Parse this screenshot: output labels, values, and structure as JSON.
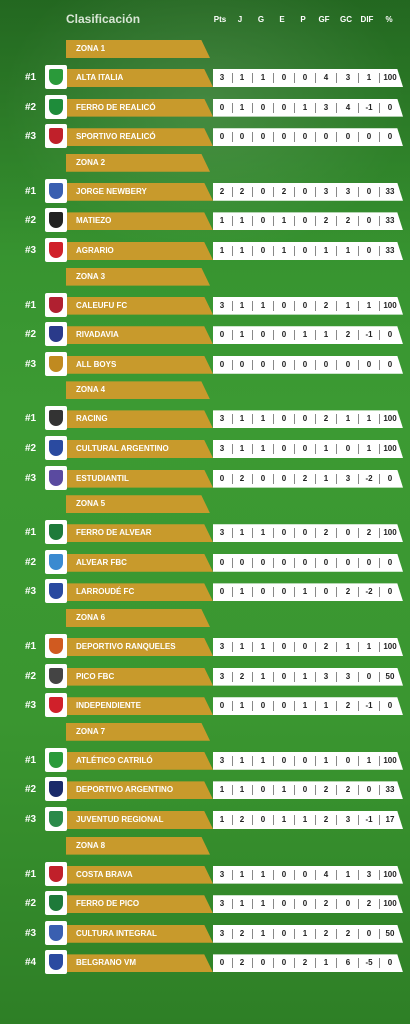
{
  "header": {
    "title": "Clasificación",
    "columns": [
      "Pts",
      "J",
      "G",
      "E",
      "P",
      "GF",
      "GC",
      "DIF",
      "%"
    ]
  },
  "zones": [
    {
      "name": "ZONA 1",
      "teams": [
        {
          "pos": "#1",
          "name": "ALTA ITALIA",
          "color": "#2a9a3a",
          "stats": [
            "3",
            "1",
            "1",
            "0",
            "0",
            "4",
            "3",
            "1",
            "100"
          ]
        },
        {
          "pos": "#2",
          "name": "FERRO DE REALICÓ",
          "color": "#1e8c3a",
          "stats": [
            "0",
            "1",
            "0",
            "0",
            "1",
            "3",
            "4",
            "-1",
            "0"
          ]
        },
        {
          "pos": "#3",
          "name": "SPORTIVO REALICÓ",
          "color": "#c0202a",
          "stats": [
            "0",
            "0",
            "0",
            "0",
            "0",
            "0",
            "0",
            "0",
            "0"
          ]
        }
      ]
    },
    {
      "name": "ZONA 2",
      "teams": [
        {
          "pos": "#1",
          "name": "JORGE NEWBERY",
          "color": "#3a5fb0",
          "stats": [
            "2",
            "2",
            "0",
            "2",
            "0",
            "3",
            "3",
            "0",
            "33"
          ]
        },
        {
          "pos": "#2",
          "name": "MATIEZO",
          "color": "#222222",
          "stats": [
            "1",
            "1",
            "0",
            "1",
            "0",
            "2",
            "2",
            "0",
            "33"
          ]
        },
        {
          "pos": "#3",
          "name": "AGRARIO",
          "color": "#d0202a",
          "stats": [
            "1",
            "1",
            "0",
            "1",
            "0",
            "1",
            "1",
            "0",
            "33"
          ]
        }
      ]
    },
    {
      "name": "ZONA 3",
      "teams": [
        {
          "pos": "#1",
          "name": "CALEUFU FC",
          "color": "#b02030",
          "stats": [
            "3",
            "1",
            "1",
            "0",
            "0",
            "2",
            "1",
            "1",
            "100"
          ]
        },
        {
          "pos": "#2",
          "name": "RIVADAVIA",
          "color": "#2a3a8a",
          "stats": [
            "0",
            "1",
            "0",
            "0",
            "1",
            "1",
            "2",
            "-1",
            "0"
          ]
        },
        {
          "pos": "#3",
          "name": "ALL BOYS",
          "color": "#c08a20",
          "stats": [
            "0",
            "0",
            "0",
            "0",
            "0",
            "0",
            "0",
            "0",
            "0"
          ]
        }
      ]
    },
    {
      "name": "ZONA 4",
      "teams": [
        {
          "pos": "#1",
          "name": "RACING",
          "color": "#333333",
          "stats": [
            "3",
            "1",
            "1",
            "0",
            "0",
            "2",
            "1",
            "1",
            "100"
          ]
        },
        {
          "pos": "#2",
          "name": "CULTURAL ARGENTINO",
          "color": "#2a4aa0",
          "stats": [
            "3",
            "1",
            "1",
            "0",
            "0",
            "1",
            "0",
            "1",
            "100"
          ]
        },
        {
          "pos": "#3",
          "name": "ESTUDIANTIL",
          "color": "#5a4aa0",
          "stats": [
            "0",
            "2",
            "0",
            "0",
            "2",
            "1",
            "3",
            "-2",
            "0"
          ]
        }
      ]
    },
    {
      "name": "ZONA 5",
      "teams": [
        {
          "pos": "#1",
          "name": "FERRO DE ALVEAR",
          "color": "#1e7a3a",
          "stats": [
            "3",
            "1",
            "1",
            "0",
            "0",
            "2",
            "0",
            "2",
            "100"
          ]
        },
        {
          "pos": "#2",
          "name": "ALVEAR FBC",
          "color": "#3a8ad0",
          "stats": [
            "0",
            "0",
            "0",
            "0",
            "0",
            "0",
            "0",
            "0",
            "0"
          ]
        },
        {
          "pos": "#3",
          "name": "LARROUDÉ FC",
          "color": "#2a4aa0",
          "stats": [
            "0",
            "1",
            "0",
            "0",
            "1",
            "0",
            "2",
            "-2",
            "0"
          ]
        }
      ]
    },
    {
      "name": "ZONA 6",
      "teams": [
        {
          "pos": "#1",
          "name": "DEPORTIVO RANQUELES",
          "color": "#d05a20",
          "stats": [
            "3",
            "1",
            "1",
            "0",
            "0",
            "2",
            "1",
            "1",
            "100"
          ]
        },
        {
          "pos": "#2",
          "name": "PICO FBC",
          "color": "#444444",
          "stats": [
            "3",
            "2",
            "1",
            "0",
            "1",
            "3",
            "3",
            "0",
            "50"
          ]
        },
        {
          "pos": "#3",
          "name": "INDEPENDIENTE",
          "color": "#d0202a",
          "stats": [
            "0",
            "1",
            "0",
            "0",
            "1",
            "1",
            "2",
            "-1",
            "0"
          ]
        }
      ]
    },
    {
      "name": "ZONA 7",
      "teams": [
        {
          "pos": "#1",
          "name": "ATLÉTICO CATRILÓ",
          "color": "#2a9a3a",
          "stats": [
            "3",
            "1",
            "1",
            "0",
            "0",
            "1",
            "0",
            "1",
            "100"
          ]
        },
        {
          "pos": "#2",
          "name": "DEPORTIVO ARGENTINO",
          "color": "#1a2a6a",
          "stats": [
            "1",
            "1",
            "0",
            "1",
            "0",
            "2",
            "2",
            "0",
            "33"
          ]
        },
        {
          "pos": "#3",
          "name": "JUVENTUD REGIONAL",
          "color": "#2a8a4a",
          "stats": [
            "1",
            "2",
            "0",
            "1",
            "1",
            "2",
            "3",
            "-1",
            "17"
          ]
        }
      ]
    },
    {
      "name": "ZONA 8",
      "teams": [
        {
          "pos": "#1",
          "name": "COSTA BRAVA",
          "color": "#c0202a",
          "stats": [
            "3",
            "1",
            "1",
            "0",
            "0",
            "4",
            "1",
            "3",
            "100"
          ]
        },
        {
          "pos": "#2",
          "name": "FERRO DE PICO",
          "color": "#1e7a3a",
          "stats": [
            "3",
            "1",
            "1",
            "0",
            "0",
            "2",
            "0",
            "2",
            "100"
          ]
        },
        {
          "pos": "#3",
          "name": "CULTURA INTEGRAL",
          "color": "#3a5fb0",
          "stats": [
            "3",
            "2",
            "1",
            "0",
            "1",
            "2",
            "2",
            "0",
            "50"
          ]
        },
        {
          "pos": "#4",
          "name": "BELGRANO VM",
          "color": "#2a4aa0",
          "stats": [
            "0",
            "2",
            "0",
            "0",
            "2",
            "1",
            "6",
            "-5",
            "0"
          ]
        }
      ]
    }
  ]
}
